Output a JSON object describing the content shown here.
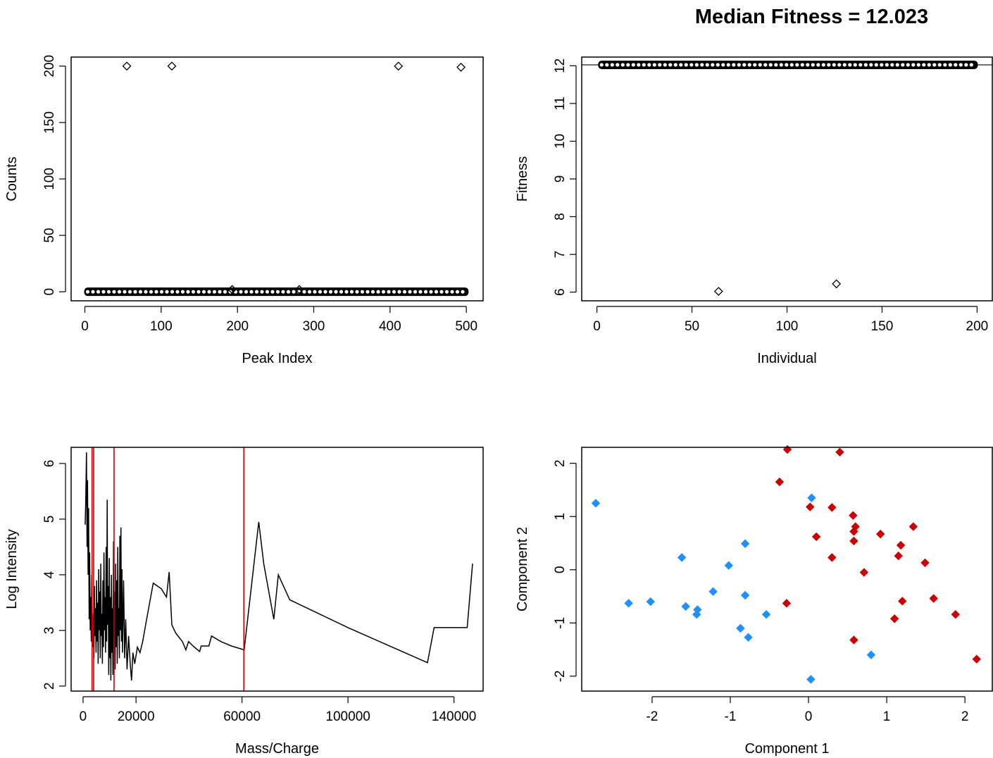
{
  "chart_data": [
    {
      "id": "peak-counts",
      "type": "scatter",
      "title": "",
      "xlabel": "Peak Index",
      "ylabel": "Counts",
      "xlim": [
        -18,
        522
      ],
      "ylim": [
        -8,
        208
      ],
      "xticks": [
        "0",
        "100",
        "200",
        "300",
        "400",
        "500"
      ],
      "yticks": [
        "0",
        "50",
        "100",
        "150",
        "200"
      ],
      "baseline": {
        "x_from": 0,
        "x_to": 502,
        "y": 0
      },
      "points": [
        {
          "x": 55,
          "y": 200
        },
        {
          "x": 114,
          "y": 200
        },
        {
          "x": 411,
          "y": 200
        },
        {
          "x": 493,
          "y": 199
        },
        {
          "x": 193,
          "y": 2
        },
        {
          "x": 281,
          "y": 2
        }
      ]
    },
    {
      "id": "fitness",
      "type": "scatter",
      "title": "Median Fitness = 12.023",
      "xlabel": "Individual",
      "ylabel": "Fitness",
      "xlim": [
        -8,
        208
      ],
      "ylim": [
        5.77,
        12.23
      ],
      "xticks": [
        "0",
        "50",
        "100",
        "150",
        "200"
      ],
      "yticks": [
        "6",
        "7",
        "8",
        "9",
        "10",
        "11",
        "12"
      ],
      "reference_line_y": 12.023,
      "baseline": {
        "x_from": 1,
        "x_to": 200,
        "y": 12.023
      },
      "points": [
        {
          "x": 64,
          "y": 6.02
        },
        {
          "x": 126,
          "y": 6.22
        }
      ]
    },
    {
      "id": "spectrum",
      "type": "line",
      "title": "",
      "xlabel": "Mass/Charge",
      "ylabel": "Log Intensity",
      "xlim": [
        -4500,
        151000
      ],
      "ylim": [
        1.91,
        6.29
      ],
      "xticks": [
        "0",
        "20000",
        "60000",
        "100000",
        "140000"
      ],
      "yticks": [
        "2",
        "3",
        "4",
        "5",
        "6"
      ],
      "vlines": [
        3400,
        4000,
        11700,
        60700
      ],
      "vline_color": "#cc0000",
      "line": [
        [
          800,
          4.9
        ],
        [
          1000,
          5.3
        ],
        [
          1300,
          6.2
        ],
        [
          1500,
          4.5
        ],
        [
          1700,
          5.7
        ],
        [
          1900,
          4.0
        ],
        [
          2100,
          5.2
        ],
        [
          2300,
          3.2
        ],
        [
          2500,
          4.4
        ],
        [
          2700,
          3.0
        ],
        [
          2900,
          3.6
        ],
        [
          3100,
          2.8
        ],
        [
          3300,
          4.0
        ],
        [
          3500,
          3.1
        ],
        [
          3700,
          2.7
        ],
        [
          3900,
          3.3
        ],
        [
          4100,
          2.5
        ],
        [
          4300,
          3.8
        ],
        [
          4500,
          2.9
        ],
        [
          4700,
          3.4
        ],
        [
          4900,
          2.6
        ],
        [
          5100,
          3.9
        ],
        [
          5300,
          2.8
        ],
        [
          5500,
          3.5
        ],
        [
          5700,
          2.4
        ],
        [
          5900,
          4.1
        ],
        [
          6100,
          3.0
        ],
        [
          6300,
          3.7
        ],
        [
          6500,
          2.5
        ],
        [
          6700,
          4.2
        ],
        [
          6900,
          2.9
        ],
        [
          7100,
          3.3
        ],
        [
          7300,
          2.4
        ],
        [
          7500,
          3.9
        ],
        [
          7700,
          2.7
        ],
        [
          7900,
          4.4
        ],
        [
          8100,
          3.0
        ],
        [
          8300,
          3.6
        ],
        [
          8500,
          2.6
        ],
        [
          8700,
          4.5
        ],
        [
          8900,
          2.8
        ],
        [
          9100,
          5.35
        ],
        [
          9300,
          3.1
        ],
        [
          9500,
          3.8
        ],
        [
          9700,
          2.2
        ],
        [
          9900,
          4.3
        ],
        [
          10100,
          2.5
        ],
        [
          10300,
          3.6
        ],
        [
          10500,
          2.1
        ],
        [
          10700,
          4.0
        ],
        [
          10900,
          2.6
        ],
        [
          11100,
          3.4
        ],
        [
          11300,
          2.2
        ],
        [
          11500,
          4.6
        ],
        [
          11700,
          2.8
        ],
        [
          11900,
          3.7
        ],
        [
          12100,
          2.3
        ],
        [
          12300,
          4.2
        ],
        [
          12500,
          2.7
        ],
        [
          12700,
          3.9
        ],
        [
          12900,
          2.4
        ],
        [
          13100,
          4.5
        ],
        [
          13300,
          2.9
        ],
        [
          13500,
          3.4
        ],
        [
          13700,
          2.5
        ],
        [
          13900,
          4.7
        ],
        [
          14100,
          3.0
        ],
        [
          14300,
          4.85
        ],
        [
          14500,
          2.8
        ],
        [
          14700,
          4.1
        ],
        [
          14900,
          2.6
        ],
        [
          15300,
          3.9
        ],
        [
          15700,
          2.5
        ],
        [
          16100,
          3.2
        ],
        [
          16600,
          2.3
        ],
        [
          17200,
          2.9
        ],
        [
          17800,
          2.4
        ],
        [
          18300,
          2.1
        ],
        [
          18800,
          2.6
        ],
        [
          19500,
          2.4
        ],
        [
          20500,
          2.7
        ],
        [
          21500,
          2.6
        ],
        [
          22500,
          2.8
        ],
        [
          24000,
          3.2
        ],
        [
          26500,
          3.85
        ],
        [
          29500,
          3.75
        ],
        [
          31500,
          3.6
        ],
        [
          32500,
          4.05
        ],
        [
          33500,
          3.1
        ],
        [
          35000,
          2.95
        ],
        [
          37500,
          2.8
        ],
        [
          38800,
          2.65
        ],
        [
          39800,
          2.8
        ],
        [
          41500,
          2.72
        ],
        [
          44000,
          2.62
        ],
        [
          44600,
          2.72
        ],
        [
          47500,
          2.72
        ],
        [
          48500,
          2.9
        ],
        [
          52000,
          2.8
        ],
        [
          56000,
          2.72
        ],
        [
          60800,
          2.65
        ],
        [
          66300,
          4.95
        ],
        [
          68200,
          4.2
        ],
        [
          72000,
          3.2
        ],
        [
          73700,
          4.0
        ],
        [
          78000,
          3.55
        ],
        [
          100000,
          3.05
        ],
        [
          130000,
          2.42
        ],
        [
          132500,
          3.05
        ],
        [
          145000,
          3.05
        ],
        [
          147000,
          4.2
        ]
      ]
    },
    {
      "id": "components",
      "type": "scatter",
      "title": "",
      "xlabel": "Component 1",
      "ylabel": "Component 2",
      "xlim": [
        -2.9,
        2.35
      ],
      "ylim": [
        -2.28,
        2.3
      ],
      "xticks": [
        "-2",
        "-1",
        "0",
        "1",
        "2"
      ],
      "yticks": [
        "-2",
        "-1",
        "0",
        "1",
        "2"
      ],
      "series": [
        {
          "color": "#1e90ff",
          "points": [
            [
              -2.72,
              1.25
            ],
            [
              -2.3,
              -0.63
            ],
            [
              -2.02,
              -0.6
            ],
            [
              -1.62,
              0.23
            ],
            [
              -1.57,
              -0.69
            ],
            [
              -1.43,
              -0.84
            ],
            [
              -1.42,
              -0.75
            ],
            [
              -1.22,
              -0.41
            ],
            [
              -1.02,
              0.08
            ],
            [
              -0.87,
              -1.1
            ],
            [
              -0.81,
              0.49
            ],
            [
              -0.81,
              -0.48
            ],
            [
              -0.77,
              -1.27
            ],
            [
              -0.54,
              -0.84
            ],
            [
              0.04,
              1.35
            ],
            [
              0.03,
              -2.06
            ],
            [
              0.8,
              -1.6
            ]
          ]
        },
        {
          "color": "#cc0000",
          "points": [
            [
              -0.27,
              2.26
            ],
            [
              -0.37,
              1.65
            ],
            [
              -0.28,
              -0.63
            ],
            [
              0.02,
              1.18
            ],
            [
              0.1,
              0.62
            ],
            [
              0.3,
              1.17
            ],
            [
              0.3,
              0.23
            ],
            [
              0.4,
              2.21
            ],
            [
              0.57,
              1.02
            ],
            [
              0.58,
              0.72
            ],
            [
              0.6,
              0.81
            ],
            [
              0.58,
              0.54
            ],
            [
              0.58,
              -1.32
            ],
            [
              0.71,
              -0.05
            ],
            [
              0.92,
              0.67
            ],
            [
              1.1,
              -0.92
            ],
            [
              1.15,
              0.26
            ],
            [
              1.18,
              0.46
            ],
            [
              1.2,
              -0.59
            ],
            [
              1.34,
              0.81
            ],
            [
              1.49,
              0.13
            ],
            [
              1.6,
              -0.54
            ],
            [
              1.88,
              -0.84
            ],
            [
              2.15,
              -1.68
            ]
          ]
        }
      ]
    }
  ]
}
